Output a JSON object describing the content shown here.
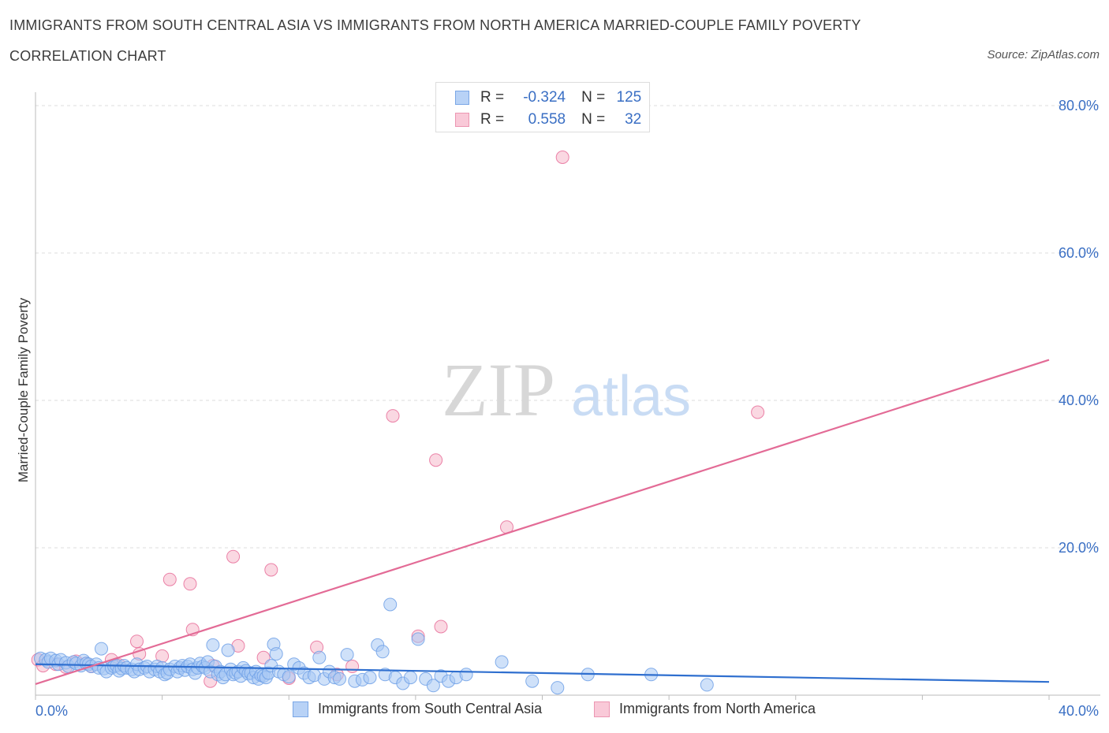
{
  "header": {
    "title": "IMMIGRANTS FROM SOUTH CENTRAL ASIA VS IMMIGRANTS FROM NORTH AMERICA MARRIED-COUPLE FAMILY POVERTY",
    "subtitle": "CORRELATION CHART",
    "source": "Source: ZipAtlas.com"
  },
  "watermark": {
    "zip": "ZIP",
    "atlas": "atlas"
  },
  "legend": {
    "rows": [
      {
        "r_label": "R =",
        "r_value": "-0.324",
        "n_label": "N =",
        "n_value": "125",
        "color": "#a8c8f4"
      },
      {
        "r_label": "R =",
        "r_value": "0.558",
        "n_label": "N =",
        "n_value": "32",
        "color": "#f6b8cb"
      }
    ]
  },
  "chart_data": {
    "type": "scatter",
    "title": "IMMIGRANTS FROM SOUTH CENTRAL ASIA VS IMMIGRANTS FROM NORTH AMERICA MARRIED-COUPLE FAMILY POVERTY",
    "subtitle": "CORRELATION CHART",
    "xlabel": "",
    "ylabel": "Married-Couple Family Poverty",
    "xlim": [
      0,
      40
    ],
    "ylim": [
      0,
      80
    ],
    "x_tick_labels": [
      "0.0%",
      "40.0%"
    ],
    "y_tick_values": [
      20,
      40,
      60,
      80
    ],
    "y_tick_labels": [
      "20.0%",
      "40.0%",
      "60.0%",
      "80.0%"
    ],
    "grid": true,
    "legend_position": "top-center",
    "series": [
      {
        "name": "Immigrants from South Central Asia",
        "color": "#6fa0e6",
        "fill": "#a8c8f4",
        "trend": {
          "x": [
            0,
            40
          ],
          "y": [
            4.2,
            1.8
          ]
        },
        "points": [
          [
            0.2,
            5.0
          ],
          [
            0.4,
            4.8
          ],
          [
            0.5,
            4.5
          ],
          [
            0.6,
            5.0
          ],
          [
            0.8,
            4.7
          ],
          [
            0.9,
            4.2
          ],
          [
            1.0,
            4.8
          ],
          [
            1.2,
            4.4
          ],
          [
            1.3,
            3.9
          ],
          [
            1.5,
            4.5
          ],
          [
            1.6,
            4.3
          ],
          [
            1.8,
            4.0
          ],
          [
            1.9,
            4.7
          ],
          [
            2.0,
            4.3
          ],
          [
            2.1,
            4.2
          ],
          [
            2.2,
            3.9
          ],
          [
            2.4,
            4.2
          ],
          [
            2.5,
            3.7
          ],
          [
            2.6,
            6.3
          ],
          [
            2.7,
            3.6
          ],
          [
            2.8,
            3.2
          ],
          [
            3.0,
            3.7
          ],
          [
            3.1,
            3.9
          ],
          [
            3.2,
            4.0
          ],
          [
            3.3,
            3.3
          ],
          [
            3.4,
            3.6
          ],
          [
            3.5,
            4.0
          ],
          [
            3.6,
            3.7
          ],
          [
            3.8,
            3.5
          ],
          [
            3.9,
            3.2
          ],
          [
            4.0,
            4.2
          ],
          [
            4.1,
            3.5
          ],
          [
            4.3,
            3.7
          ],
          [
            4.4,
            3.9
          ],
          [
            4.5,
            3.2
          ],
          [
            4.7,
            3.5
          ],
          [
            4.8,
            3.9
          ],
          [
            4.9,
            3.2
          ],
          [
            5.0,
            3.7
          ],
          [
            5.1,
            2.8
          ],
          [
            5.2,
            3.0
          ],
          [
            5.3,
            3.5
          ],
          [
            5.5,
            3.9
          ],
          [
            5.6,
            3.2
          ],
          [
            5.7,
            3.7
          ],
          [
            5.8,
            4.0
          ],
          [
            5.9,
            3.4
          ],
          [
            6.0,
            3.9
          ],
          [
            6.1,
            4.2
          ],
          [
            6.2,
            3.5
          ],
          [
            6.3,
            3.0
          ],
          [
            6.4,
            3.7
          ],
          [
            6.5,
            4.3
          ],
          [
            6.6,
            3.9
          ],
          [
            6.7,
            3.7
          ],
          [
            6.8,
            4.5
          ],
          [
            6.9,
            3.2
          ],
          [
            7.0,
            6.8
          ],
          [
            7.1,
            3.9
          ],
          [
            7.2,
            2.8
          ],
          [
            7.3,
            3.2
          ],
          [
            7.4,
            2.4
          ],
          [
            7.5,
            2.8
          ],
          [
            7.6,
            6.1
          ],
          [
            7.7,
            3.5
          ],
          [
            7.8,
            2.8
          ],
          [
            7.9,
            3.0
          ],
          [
            8.0,
            3.2
          ],
          [
            8.1,
            2.6
          ],
          [
            8.2,
            3.7
          ],
          [
            8.3,
            3.3
          ],
          [
            8.4,
            2.9
          ],
          [
            8.5,
            3.0
          ],
          [
            8.6,
            2.4
          ],
          [
            8.7,
            3.2
          ],
          [
            8.8,
            2.2
          ],
          [
            8.9,
            2.7
          ],
          [
            9.0,
            2.6
          ],
          [
            9.1,
            2.4
          ],
          [
            9.2,
            3.0
          ],
          [
            9.3,
            4.0
          ],
          [
            9.4,
            6.9
          ],
          [
            9.5,
            5.6
          ],
          [
            9.6,
            3.2
          ],
          [
            9.8,
            2.8
          ],
          [
            10.0,
            2.5
          ],
          [
            10.2,
            4.2
          ],
          [
            10.4,
            3.7
          ],
          [
            10.6,
            3.0
          ],
          [
            10.8,
            2.4
          ],
          [
            11.0,
            2.7
          ],
          [
            11.2,
            5.1
          ],
          [
            11.4,
            2.2
          ],
          [
            11.6,
            3.2
          ],
          [
            11.8,
            2.4
          ],
          [
            12.0,
            2.2
          ],
          [
            12.3,
            5.5
          ],
          [
            12.6,
            1.9
          ],
          [
            12.9,
            2.1
          ],
          [
            13.2,
            2.4
          ],
          [
            13.5,
            6.8
          ],
          [
            13.7,
            5.9
          ],
          [
            13.8,
            2.8
          ],
          [
            14.0,
            12.3
          ],
          [
            14.2,
            2.4
          ],
          [
            14.5,
            1.6
          ],
          [
            14.8,
            2.4
          ],
          [
            15.1,
            7.6
          ],
          [
            15.4,
            2.2
          ],
          [
            15.7,
            1.3
          ],
          [
            16.0,
            2.6
          ],
          [
            16.3,
            1.9
          ],
          [
            16.6,
            2.4
          ],
          [
            17.0,
            2.8
          ],
          [
            18.4,
            4.5
          ],
          [
            19.6,
            1.9
          ],
          [
            20.6,
            1.0
          ],
          [
            21.8,
            2.8
          ],
          [
            24.3,
            2.8
          ],
          [
            26.5,
            1.4
          ]
        ]
      },
      {
        "name": "Immigrants from North America",
        "color": "#e86f9a",
        "fill": "#f6b8cb",
        "trend": {
          "x": [
            0,
            40
          ],
          "y": [
            1.5,
            45.5
          ]
        },
        "points": [
          [
            0.1,
            4.8
          ],
          [
            0.3,
            4.0
          ],
          [
            0.8,
            4.2
          ],
          [
            1.2,
            3.8
          ],
          [
            1.6,
            4.6
          ],
          [
            2.0,
            4.3
          ],
          [
            2.2,
            3.9
          ],
          [
            3.0,
            4.8
          ],
          [
            3.3,
            4.1
          ],
          [
            4.0,
            7.3
          ],
          [
            4.1,
            5.6
          ],
          [
            5.0,
            5.3
          ],
          [
            5.3,
            15.7
          ],
          [
            6.1,
            15.1
          ],
          [
            6.2,
            8.9
          ],
          [
            6.9,
            1.9
          ],
          [
            7.0,
            4.0
          ],
          [
            7.8,
            18.8
          ],
          [
            8.0,
            6.7
          ],
          [
            9.0,
            5.1
          ],
          [
            9.3,
            17.0
          ],
          [
            10.0,
            2.3
          ],
          [
            11.1,
            6.5
          ],
          [
            11.9,
            2.8
          ],
          [
            12.5,
            3.9
          ],
          [
            14.1,
            37.9
          ],
          [
            15.1,
            8.0
          ],
          [
            15.8,
            31.9
          ],
          [
            16.0,
            9.3
          ],
          [
            18.6,
            22.8
          ],
          [
            20.8,
            73.0
          ],
          [
            28.5,
            38.4
          ]
        ]
      }
    ]
  },
  "bottom_legend": {
    "items": [
      {
        "label": "Immigrants from South Central Asia",
        "color": "#a8c8f4"
      },
      {
        "label": "Immigrants from North America",
        "color": "#f6b8cb"
      }
    ]
  }
}
